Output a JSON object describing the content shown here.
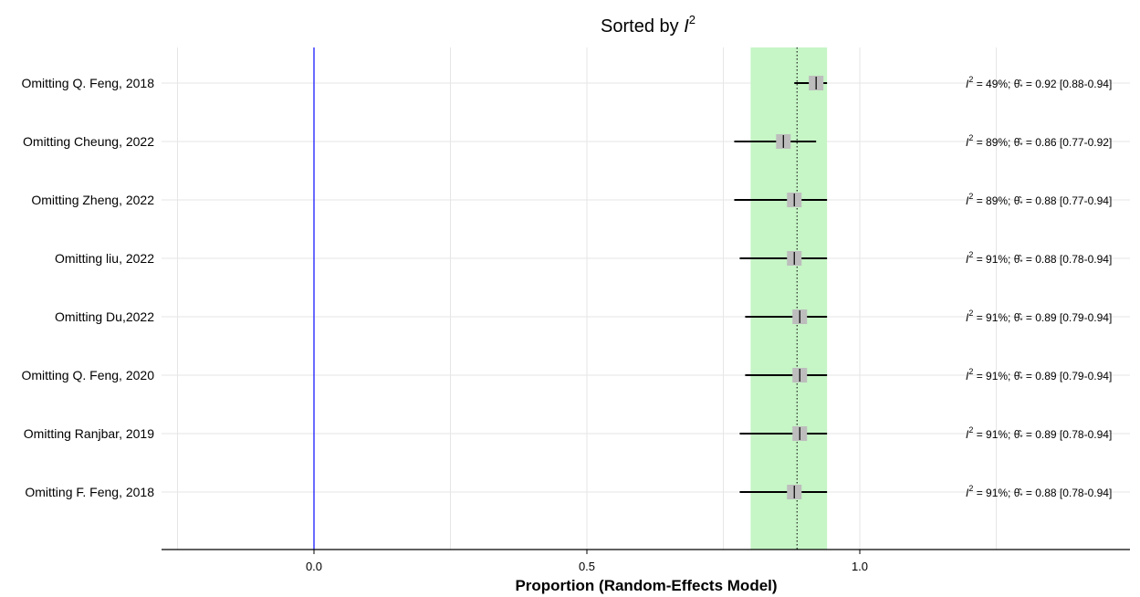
{
  "chart_data": {
    "type": "forest",
    "title": "Sorted by",
    "title_symbol": "I",
    "title_superscript": "2",
    "xlabel": "Proportion (Random-Effects Model)",
    "xlim": [
      -0.28,
      1.5
    ],
    "x_ticks": [
      {
        "value": 0.0,
        "label": "0.0"
      },
      {
        "value": 0.5,
        "label": "0.5"
      },
      {
        "value": 1.0,
        "label": "1.0"
      }
    ],
    "minor_gridlines": [
      -0.25,
      0.25,
      0.75,
      1.25
    ],
    "reference_line": 0.0,
    "pooled_estimate": 0.885,
    "pooled_interval": [
      0.8,
      0.94
    ],
    "grid": true,
    "colors": {
      "reference_line": "#1a1aff",
      "interval_band": "#c6f5c6",
      "marker": "#bdbdbd",
      "grid": "#e6e6e6",
      "axis": "#000000"
    },
    "rows": [
      {
        "label": "Omitting Q. Feng, 2018",
        "estimate": 0.92,
        "lower": 0.88,
        "upper": 0.94,
        "i2": "49%",
        "est_text": "0.92",
        "ci_text": "[0.88-0.94]"
      },
      {
        "label": "Omitting Cheung, 2022",
        "estimate": 0.86,
        "lower": 0.77,
        "upper": 0.92,
        "i2": "89%",
        "est_text": "0.86",
        "ci_text": "[0.77-0.92]"
      },
      {
        "label": "Omitting Zheng, 2022",
        "estimate": 0.88,
        "lower": 0.77,
        "upper": 0.94,
        "i2": "89%",
        "est_text": "0.88",
        "ci_text": "[0.77-0.94]"
      },
      {
        "label": "Omitting liu, 2022",
        "estimate": 0.88,
        "lower": 0.78,
        "upper": 0.94,
        "i2": "91%",
        "est_text": "0.88",
        "ci_text": "[0.78-0.94]"
      },
      {
        "label": "Omitting Du,2022",
        "estimate": 0.89,
        "lower": 0.79,
        "upper": 0.94,
        "i2": "91%",
        "est_text": "0.89",
        "ci_text": "[0.79-0.94]"
      },
      {
        "label": "Omitting Q. Feng, 2020",
        "estimate": 0.89,
        "lower": 0.79,
        "upper": 0.94,
        "i2": "91%",
        "est_text": "0.89",
        "ci_text": "[0.79-0.94]"
      },
      {
        "label": "Omitting Ranjbar, 2019",
        "estimate": 0.89,
        "lower": 0.78,
        "upper": 0.94,
        "i2": "91%",
        "est_text": "0.89",
        "ci_text": "[0.78-0.94]"
      },
      {
        "label": "Omitting F. Feng, 2018",
        "estimate": 0.88,
        "lower": 0.78,
        "upper": 0.94,
        "i2": "91%",
        "est_text": "0.88",
        "ci_text": "[0.78-0.94]"
      }
    ],
    "annotation_template": {
      "i2_symbol": "I",
      "i2_superscript": "2",
      "eq": " = ",
      "theta_symbol": "θ̂",
      "theta_subscript": "*",
      "sep": "; "
    }
  }
}
